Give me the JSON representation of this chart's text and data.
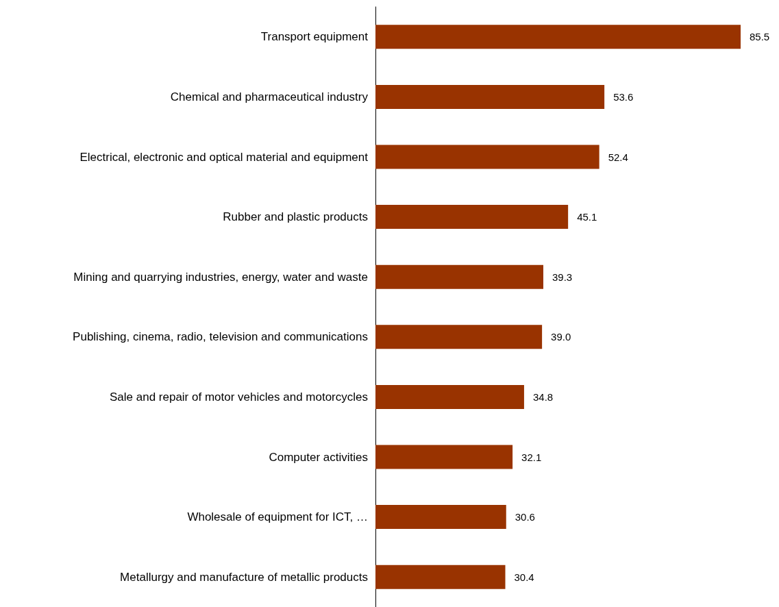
{
  "chart_data": {
    "type": "bar",
    "orientation": "horizontal",
    "categories": [
      "Transport equipment",
      "Chemical and pharmaceutical industry",
      "Electrical, electronic and optical material and equipment",
      "Rubber and plastic products",
      "Mining and quarrying industries, energy, water and waste",
      "Publishing, cinema, radio, television and communications",
      "Sale and repair of motor vehicles and motorcycles",
      "Computer activities",
      "Wholesale of equipment for ICT, …",
      "Metallurgy and manufacture of metallic products"
    ],
    "values": [
      85.5,
      53.6,
      52.4,
      45.1,
      39.3,
      39.0,
      34.8,
      32.1,
      30.6,
      30.4
    ],
    "value_labels": [
      "85.5",
      "53.6",
      "52.4",
      "45.1",
      "39.3",
      "39.0",
      "34.8",
      "32.1",
      "30.6",
      "30.4"
    ],
    "color": "#993300"
  }
}
